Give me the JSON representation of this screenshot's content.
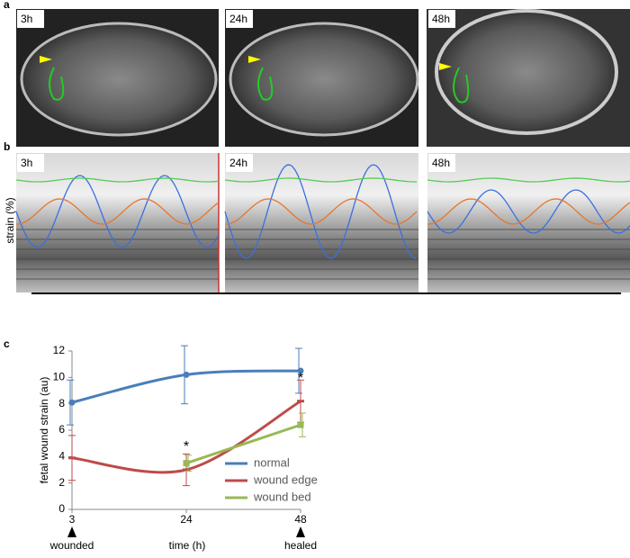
{
  "panels": {
    "a": {
      "label": "a",
      "images": [
        "3h",
        "24h",
        "48h"
      ]
    },
    "b": {
      "label": "b",
      "y_label": "strain (%)",
      "images": [
        "3h",
        "24h",
        "48h"
      ]
    }
  },
  "chart_data": {
    "type": "line",
    "panel_label": "c",
    "x_label": "time (h)",
    "y_label": "fetal wound strain (au)",
    "categories": [
      "3",
      "24",
      "48"
    ],
    "series": [
      {
        "name": "normal",
        "color": "#4a7ebb",
        "marker": "circle",
        "values": [
          8.1,
          10.2,
          10.5
        ],
        "errors": [
          1.7,
          2.2,
          1.7
        ]
      },
      {
        "name": "wound edge",
        "color": "#be4b48",
        "marker": "dash",
        "values": [
          3.9,
          3.0,
          8.2
        ],
        "errors": [
          1.7,
          1.2,
          1.6
        ]
      },
      {
        "name": "wound bed",
        "color": "#98b954",
        "marker": "square",
        "values": [
          null,
          3.5,
          6.4
        ],
        "errors": [
          null,
          0.6,
          0.9
        ]
      }
    ],
    "ylim": [
      0,
      12
    ],
    "yticks": [
      0,
      2,
      4,
      6,
      8,
      10,
      12
    ],
    "annotations": [
      "*",
      "*",
      "wounded",
      "healed"
    ],
    "legend": "right"
  }
}
